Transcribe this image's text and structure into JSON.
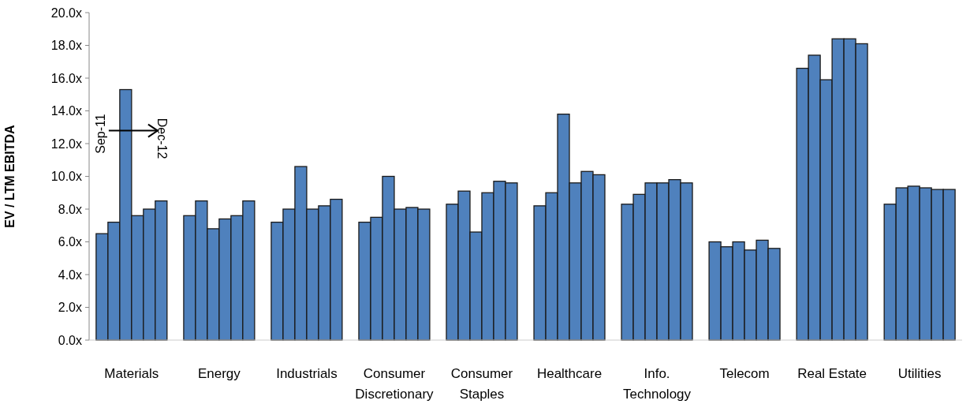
{
  "chart_data": {
    "type": "bar",
    "ylabel": "EV / LTM EBITDA",
    "categories": [
      "Materials",
      "Energy",
      "Industrials",
      "Consumer Discretionary",
      "Consumer Staples",
      "Healthcare",
      "Info. Technology",
      "Telecom",
      "Real Estate",
      "Utilities"
    ],
    "series": [
      {
        "color": "#4f81bd",
        "values": [
          6.5,
          7.6,
          7.2,
          7.2,
          8.3,
          8.2,
          8.3,
          6.0,
          16.6,
          8.3
        ]
      },
      {
        "color": "#4f81bd",
        "values": [
          7.2,
          8.5,
          8.0,
          7.5,
          9.1,
          9.0,
          8.9,
          5.7,
          17.4,
          9.3
        ]
      },
      {
        "color": "#4f81bd",
        "values": [
          15.3,
          6.8,
          10.6,
          10.0,
          6.6,
          13.8,
          9.6,
          6.0,
          15.9,
          9.4
        ]
      },
      {
        "color": "#4f81bd",
        "values": [
          7.6,
          7.4,
          8.0,
          8.0,
          9.0,
          9.6,
          9.6,
          5.5,
          18.4,
          9.3
        ]
      },
      {
        "color": "#4f81bd",
        "values": [
          8.0,
          7.6,
          8.2,
          8.1,
          9.7,
          10.3,
          9.8,
          6.1,
          18.4,
          9.2
        ]
      },
      {
        "color": "#4f81bd",
        "values": [
          8.5,
          8.5,
          8.6,
          8.0,
          9.6,
          10.1,
          9.6,
          5.6,
          18.1,
          9.2
        ]
      }
    ],
    "ylim": [
      0,
      20
    ],
    "yticks": [
      {
        "value": 0,
        "label": "0.0x"
      },
      {
        "value": 2,
        "label": "2.0x"
      },
      {
        "value": 4,
        "label": "4.0x"
      },
      {
        "value": 6,
        "label": "6.0x"
      },
      {
        "value": 8,
        "label": "8.0x"
      },
      {
        "value": 10,
        "label": "10.0x"
      },
      {
        "value": 12,
        "label": "12.0x"
      },
      {
        "value": 14,
        "label": "14.0x"
      },
      {
        "value": 16,
        "label": "16.0x"
      },
      {
        "value": 18,
        "label": "18.0x"
      },
      {
        "value": 20,
        "label": "20.0x"
      }
    ],
    "annotations": [
      "Sep-11",
      "Dec-12"
    ],
    "grid": false
  }
}
